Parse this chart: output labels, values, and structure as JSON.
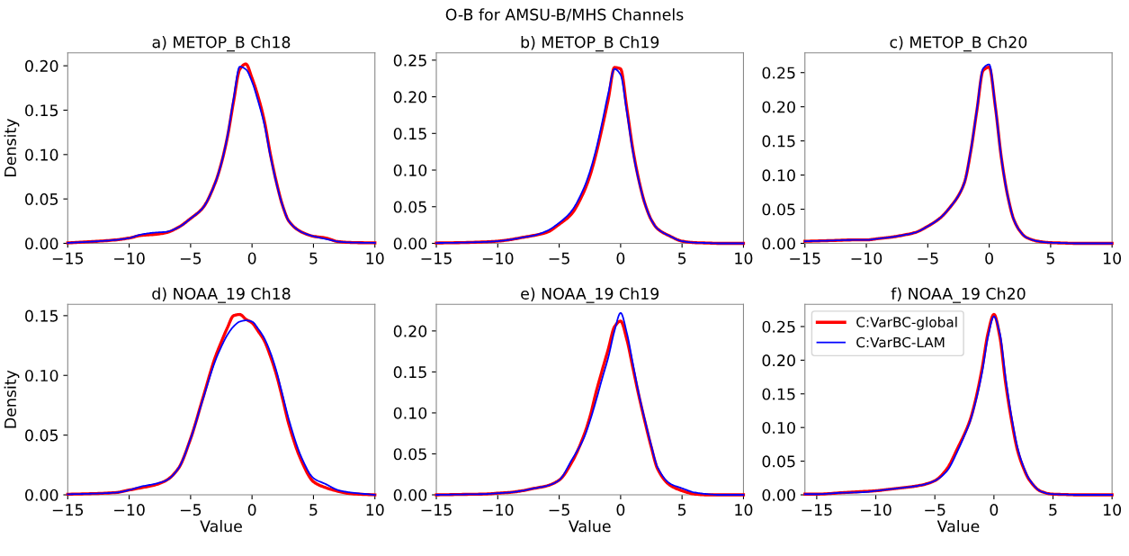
{
  "chart_data": [
    {
      "type": "line",
      "title": "a) METOP_B Ch18",
      "ylabel": "Density",
      "annotations": [
        "O-B for AMSU-B/MHS Channels"
      ],
      "xlim": [
        -15,
        10
      ],
      "ylim": [
        0,
        0.2146
      ],
      "xticks": [
        {
          "value": -15,
          "label": "−15"
        },
        {
          "value": -10,
          "label": "−10"
        },
        {
          "value": -5,
          "label": "−5"
        },
        {
          "value": 0,
          "label": "0"
        },
        {
          "value": 5,
          "label": "5"
        },
        {
          "value": 10,
          "label": "10"
        }
      ],
      "yticks": [
        {
          "value": 0,
          "label": "0.00"
        },
        {
          "value": 0.05,
          "label": "0.05"
        },
        {
          "value": 0.1,
          "label": "0.10"
        },
        {
          "value": 0.15,
          "label": "0.15"
        },
        {
          "value": 0.2,
          "label": "0.20"
        }
      ],
      "grid": false,
      "legend": false,
      "x": [
        -15,
        -13,
        -11,
        -10,
        -9,
        -8,
        -7,
        -6,
        -5,
        -4,
        -3,
        -2.5,
        -2,
        -1.5,
        -1,
        -0.5,
        0,
        0.5,
        1,
        1.5,
        2,
        2.5,
        3,
        4,
        5,
        6,
        7,
        8,
        10
      ],
      "series": [
        {
          "color": "#ff0000",
          "values": [
            0.0005,
            0.002,
            0.004,
            0.006,
            0.009,
            0.01,
            0.012,
            0.018,
            0.028,
            0.04,
            0.068,
            0.09,
            0.12,
            0.16,
            0.196,
            0.202,
            0.186,
            0.165,
            0.138,
            0.1,
            0.068,
            0.042,
            0.025,
            0.013,
            0.008,
            0.006,
            0.002,
            0.001,
            0.0005
          ]
        },
        {
          "color": "#0000ff",
          "values": [
            0.0005,
            0.002,
            0.004,
            0.006,
            0.01,
            0.012,
            0.013,
            0.018,
            0.028,
            0.04,
            0.068,
            0.09,
            0.121,
            0.163,
            0.199,
            0.196,
            0.182,
            0.16,
            0.134,
            0.098,
            0.067,
            0.042,
            0.025,
            0.013,
            0.008,
            0.005,
            0.002,
            0.001,
            0.0005
          ]
        }
      ]
    },
    {
      "type": "line",
      "title": "b) METOP_B Ch19",
      "xlim": [
        -15,
        10
      ],
      "ylim": [
        0,
        0.26
      ],
      "xticks": [
        {
          "value": -15,
          "label": "−15"
        },
        {
          "value": -10,
          "label": "−10"
        },
        {
          "value": -5,
          "label": "−5"
        },
        {
          "value": 0,
          "label": "0"
        },
        {
          "value": 5,
          "label": "5"
        },
        {
          "value": 10,
          "label": "10"
        }
      ],
      "yticks": [
        {
          "value": 0,
          "label": "0.00"
        },
        {
          "value": 0.05,
          "label": "0.05"
        },
        {
          "value": 0.1,
          "label": "0.10"
        },
        {
          "value": 0.15,
          "label": "0.15"
        },
        {
          "value": 0.2,
          "label": "0.20"
        },
        {
          "value": 0.25,
          "label": "0.25"
        }
      ],
      "grid": false,
      "legend": false,
      "x": [
        -15,
        -13,
        -11,
        -10,
        -9,
        -8,
        -7,
        -6,
        -5,
        -4,
        -3,
        -2.5,
        -2,
        -1.5,
        -1,
        -0.5,
        0,
        0.5,
        1,
        1.5,
        2,
        2.5,
        3,
        4,
        5,
        6,
        7,
        8,
        10
      ],
      "series": [
        {
          "color": "#ff0000",
          "values": [
            0.0005,
            0.001,
            0.002,
            0.003,
            0.005,
            0.008,
            0.011,
            0.015,
            0.026,
            0.04,
            0.07,
            0.092,
            0.122,
            0.158,
            0.197,
            0.24,
            0.238,
            0.185,
            0.128,
            0.085,
            0.053,
            0.032,
            0.02,
            0.01,
            0.003,
            0.001,
            0.0005,
            0,
            0
          ]
        },
        {
          "color": "#0000ff",
          "values": [
            0.0005,
            0.001,
            0.002,
            0.003,
            0.005,
            0.008,
            0.011,
            0.017,
            0.028,
            0.044,
            0.075,
            0.098,
            0.128,
            0.165,
            0.205,
            0.238,
            0.23,
            0.18,
            0.125,
            0.084,
            0.053,
            0.032,
            0.02,
            0.01,
            0.003,
            0.001,
            0.0005,
            0,
            0
          ]
        }
      ]
    },
    {
      "type": "line",
      "title": "c) METOP_B Ch20",
      "xlim": [
        -15,
        10
      ],
      "ylim": [
        0,
        0.279
      ],
      "xticks": [
        {
          "value": -15,
          "label": "−15"
        },
        {
          "value": -10,
          "label": "−10"
        },
        {
          "value": -5,
          "label": "−5"
        },
        {
          "value": 0,
          "label": "0"
        },
        {
          "value": 5,
          "label": "5"
        },
        {
          "value": 10,
          "label": "10"
        }
      ],
      "yticks": [
        {
          "value": 0,
          "label": "0.00"
        },
        {
          "value": 0.05,
          "label": "0.05"
        },
        {
          "value": 0.1,
          "label": "0.10"
        },
        {
          "value": 0.15,
          "label": "0.15"
        },
        {
          "value": 0.2,
          "label": "0.20"
        },
        {
          "value": 0.25,
          "label": "0.25"
        }
      ],
      "grid": false,
      "legend": false,
      "x": [
        -15,
        -13,
        -11,
        -10,
        -9,
        -8,
        -7,
        -6,
        -5,
        -4,
        -3,
        -2.5,
        -2,
        -1.5,
        -1,
        -0.5,
        0,
        0.5,
        1,
        1.5,
        2,
        2.5,
        3,
        4,
        5,
        6,
        7,
        8,
        10
      ],
      "series": [
        {
          "color": "#ff0000",
          "values": [
            0.003,
            0.004,
            0.005,
            0.005,
            0.007,
            0.009,
            0.012,
            0.016,
            0.025,
            0.037,
            0.057,
            0.07,
            0.09,
            0.135,
            0.195,
            0.253,
            0.258,
            0.2,
            0.124,
            0.07,
            0.035,
            0.018,
            0.009,
            0.003,
            0.001,
            0.0005,
            0,
            0,
            0
          ]
        },
        {
          "color": "#0000ff",
          "values": [
            0.003,
            0.004,
            0.005,
            0.005,
            0.007,
            0.009,
            0.012,
            0.016,
            0.025,
            0.037,
            0.057,
            0.07,
            0.09,
            0.136,
            0.196,
            0.256,
            0.262,
            0.2,
            0.124,
            0.07,
            0.035,
            0.018,
            0.009,
            0.003,
            0.001,
            0.0005,
            0,
            0,
            0
          ]
        }
      ]
    },
    {
      "type": "line",
      "title": "d) NOAA_19 Ch18",
      "xlabel": "Value",
      "ylabel": "Density",
      "xlim": [
        -15,
        10
      ],
      "ylim": [
        0,
        0.1595
      ],
      "xticks": [
        {
          "value": -15,
          "label": "−15"
        },
        {
          "value": -10,
          "label": "−10"
        },
        {
          "value": -5,
          "label": "−5"
        },
        {
          "value": 0,
          "label": "0"
        },
        {
          "value": 5,
          "label": "5"
        },
        {
          "value": 10,
          "label": "10"
        }
      ],
      "yticks": [
        {
          "value": 0,
          "label": "0.00"
        },
        {
          "value": 0.05,
          "label": "0.05"
        },
        {
          "value": 0.1,
          "label": "0.10"
        },
        {
          "value": 0.15,
          "label": "0.15"
        }
      ],
      "grid": false,
      "legend": false,
      "x": [
        -15,
        -13,
        -11,
        -10,
        -9,
        -8,
        -7,
        -6,
        -5,
        -4,
        -3,
        -2.5,
        -2,
        -1.5,
        -1,
        -0.5,
        0,
        0.5,
        1,
        1.5,
        2,
        2.5,
        3,
        4,
        5,
        6,
        7,
        8,
        10
      ],
      "series": [
        {
          "color": "#ff0000",
          "values": [
            0.0005,
            0.001,
            0.002,
            0.004,
            0.006,
            0.008,
            0.012,
            0.022,
            0.047,
            0.081,
            0.115,
            0.128,
            0.14,
            0.15,
            0.151,
            0.147,
            0.144,
            0.137,
            0.129,
            0.116,
            0.1,
            0.08,
            0.059,
            0.029,
            0.011,
            0.006,
            0.003,
            0.001,
            0
          ]
        },
        {
          "color": "#0000ff",
          "values": [
            0.0005,
            0.001,
            0.002,
            0.004,
            0.007,
            0.009,
            0.012,
            0.022,
            0.047,
            0.08,
            0.112,
            0.124,
            0.134,
            0.141,
            0.145,
            0.146,
            0.145,
            0.139,
            0.131,
            0.119,
            0.103,
            0.083,
            0.063,
            0.032,
            0.014,
            0.009,
            0.004,
            0.002,
            0
          ]
        }
      ]
    },
    {
      "type": "line",
      "title": "e) NOAA_19 Ch19",
      "xlabel": "Value",
      "xlim": [
        -15,
        10
      ],
      "ylim": [
        0,
        0.2325
      ],
      "xticks": [
        {
          "value": -15,
          "label": "−15"
        },
        {
          "value": -10,
          "label": "−10"
        },
        {
          "value": -5,
          "label": "−5"
        },
        {
          "value": 0,
          "label": "0"
        },
        {
          "value": 5,
          "label": "5"
        },
        {
          "value": 10,
          "label": "10"
        }
      ],
      "yticks": [
        {
          "value": 0,
          "label": "0.00"
        },
        {
          "value": 0.05,
          "label": "0.05"
        },
        {
          "value": 0.1,
          "label": "0.10"
        },
        {
          "value": 0.15,
          "label": "0.15"
        },
        {
          "value": 0.2,
          "label": "0.20"
        }
      ],
      "grid": false,
      "legend": false,
      "x": [
        -15,
        -13,
        -11,
        -10,
        -9,
        -8,
        -7,
        -6,
        -5,
        -4,
        -3,
        -2.5,
        -2,
        -1.5,
        -1,
        -0.5,
        0,
        0.5,
        1,
        1.5,
        2,
        2.5,
        3,
        4,
        5,
        6,
        7,
        8,
        10
      ],
      "series": [
        {
          "color": "#ff0000",
          "values": [
            0,
            0.0005,
            0.001,
            0.002,
            0.003,
            0.005,
            0.008,
            0.011,
            0.018,
            0.039,
            0.072,
            0.095,
            0.125,
            0.152,
            0.178,
            0.205,
            0.212,
            0.19,
            0.155,
            0.12,
            0.088,
            0.058,
            0.032,
            0.012,
            0.005,
            0.001,
            0,
            0,
            0
          ]
        },
        {
          "color": "#0000ff",
          "values": [
            0,
            0.0005,
            0.001,
            0.002,
            0.003,
            0.005,
            0.008,
            0.011,
            0.018,
            0.042,
            0.069,
            0.09,
            0.115,
            0.142,
            0.168,
            0.2,
            0.222,
            0.198,
            0.16,
            0.122,
            0.09,
            0.06,
            0.034,
            0.014,
            0.008,
            0.003,
            0.001,
            0,
            0
          ]
        }
      ]
    },
    {
      "type": "line",
      "title": "f) NOAA_19 Ch20",
      "xlabel": "Value",
      "xlim": [
        -16,
        10
      ],
      "ylim": [
        0,
        0.283
      ],
      "xticks": [
        {
          "value": -15,
          "label": "−15"
        },
        {
          "value": -10,
          "label": "−10"
        },
        {
          "value": -5,
          "label": "−5"
        },
        {
          "value": 0,
          "label": "0"
        },
        {
          "value": 5,
          "label": "5"
        },
        {
          "value": 10,
          "label": "10"
        }
      ],
      "yticks": [
        {
          "value": 0,
          "label": "0.00"
        },
        {
          "value": 0.05,
          "label": "0.05"
        },
        {
          "value": 0.1,
          "label": "0.10"
        },
        {
          "value": 0.15,
          "label": "0.15"
        },
        {
          "value": 0.2,
          "label": "0.20"
        },
        {
          "value": 0.25,
          "label": "0.25"
        }
      ],
      "grid": false,
      "legend": "upper left",
      "x": [
        -16,
        -15,
        -13,
        -11,
        -10,
        -9,
        -8,
        -7,
        -6,
        -5,
        -4,
        -3,
        -2.5,
        -2,
        -1.5,
        -1,
        -0.5,
        0,
        0.5,
        1,
        1.5,
        2,
        2.5,
        3,
        4,
        5,
        6,
        7,
        8,
        10
      ],
      "series": [
        {
          "name": "C:VarBC-global",
          "color": "#ff0000",
          "values": [
            0.001,
            0.001,
            0.003,
            0.005,
            0.006,
            0.008,
            0.01,
            0.012,
            0.015,
            0.021,
            0.038,
            0.072,
            0.09,
            0.112,
            0.145,
            0.188,
            0.24,
            0.268,
            0.235,
            0.165,
            0.11,
            0.066,
            0.04,
            0.022,
            0.005,
            0.001,
            0.0005,
            0,
            0,
            0
          ]
        },
        {
          "name": "C:VarBC-LAM",
          "color": "#0000ff",
          "values": [
            0.001,
            0.001,
            0.003,
            0.004,
            0.006,
            0.008,
            0.01,
            0.012,
            0.015,
            0.021,
            0.035,
            0.068,
            0.088,
            0.11,
            0.142,
            0.182,
            0.235,
            0.265,
            0.24,
            0.172,
            0.115,
            0.07,
            0.042,
            0.023,
            0.005,
            0.001,
            0.0005,
            0,
            0,
            0
          ]
        }
      ]
    }
  ]
}
